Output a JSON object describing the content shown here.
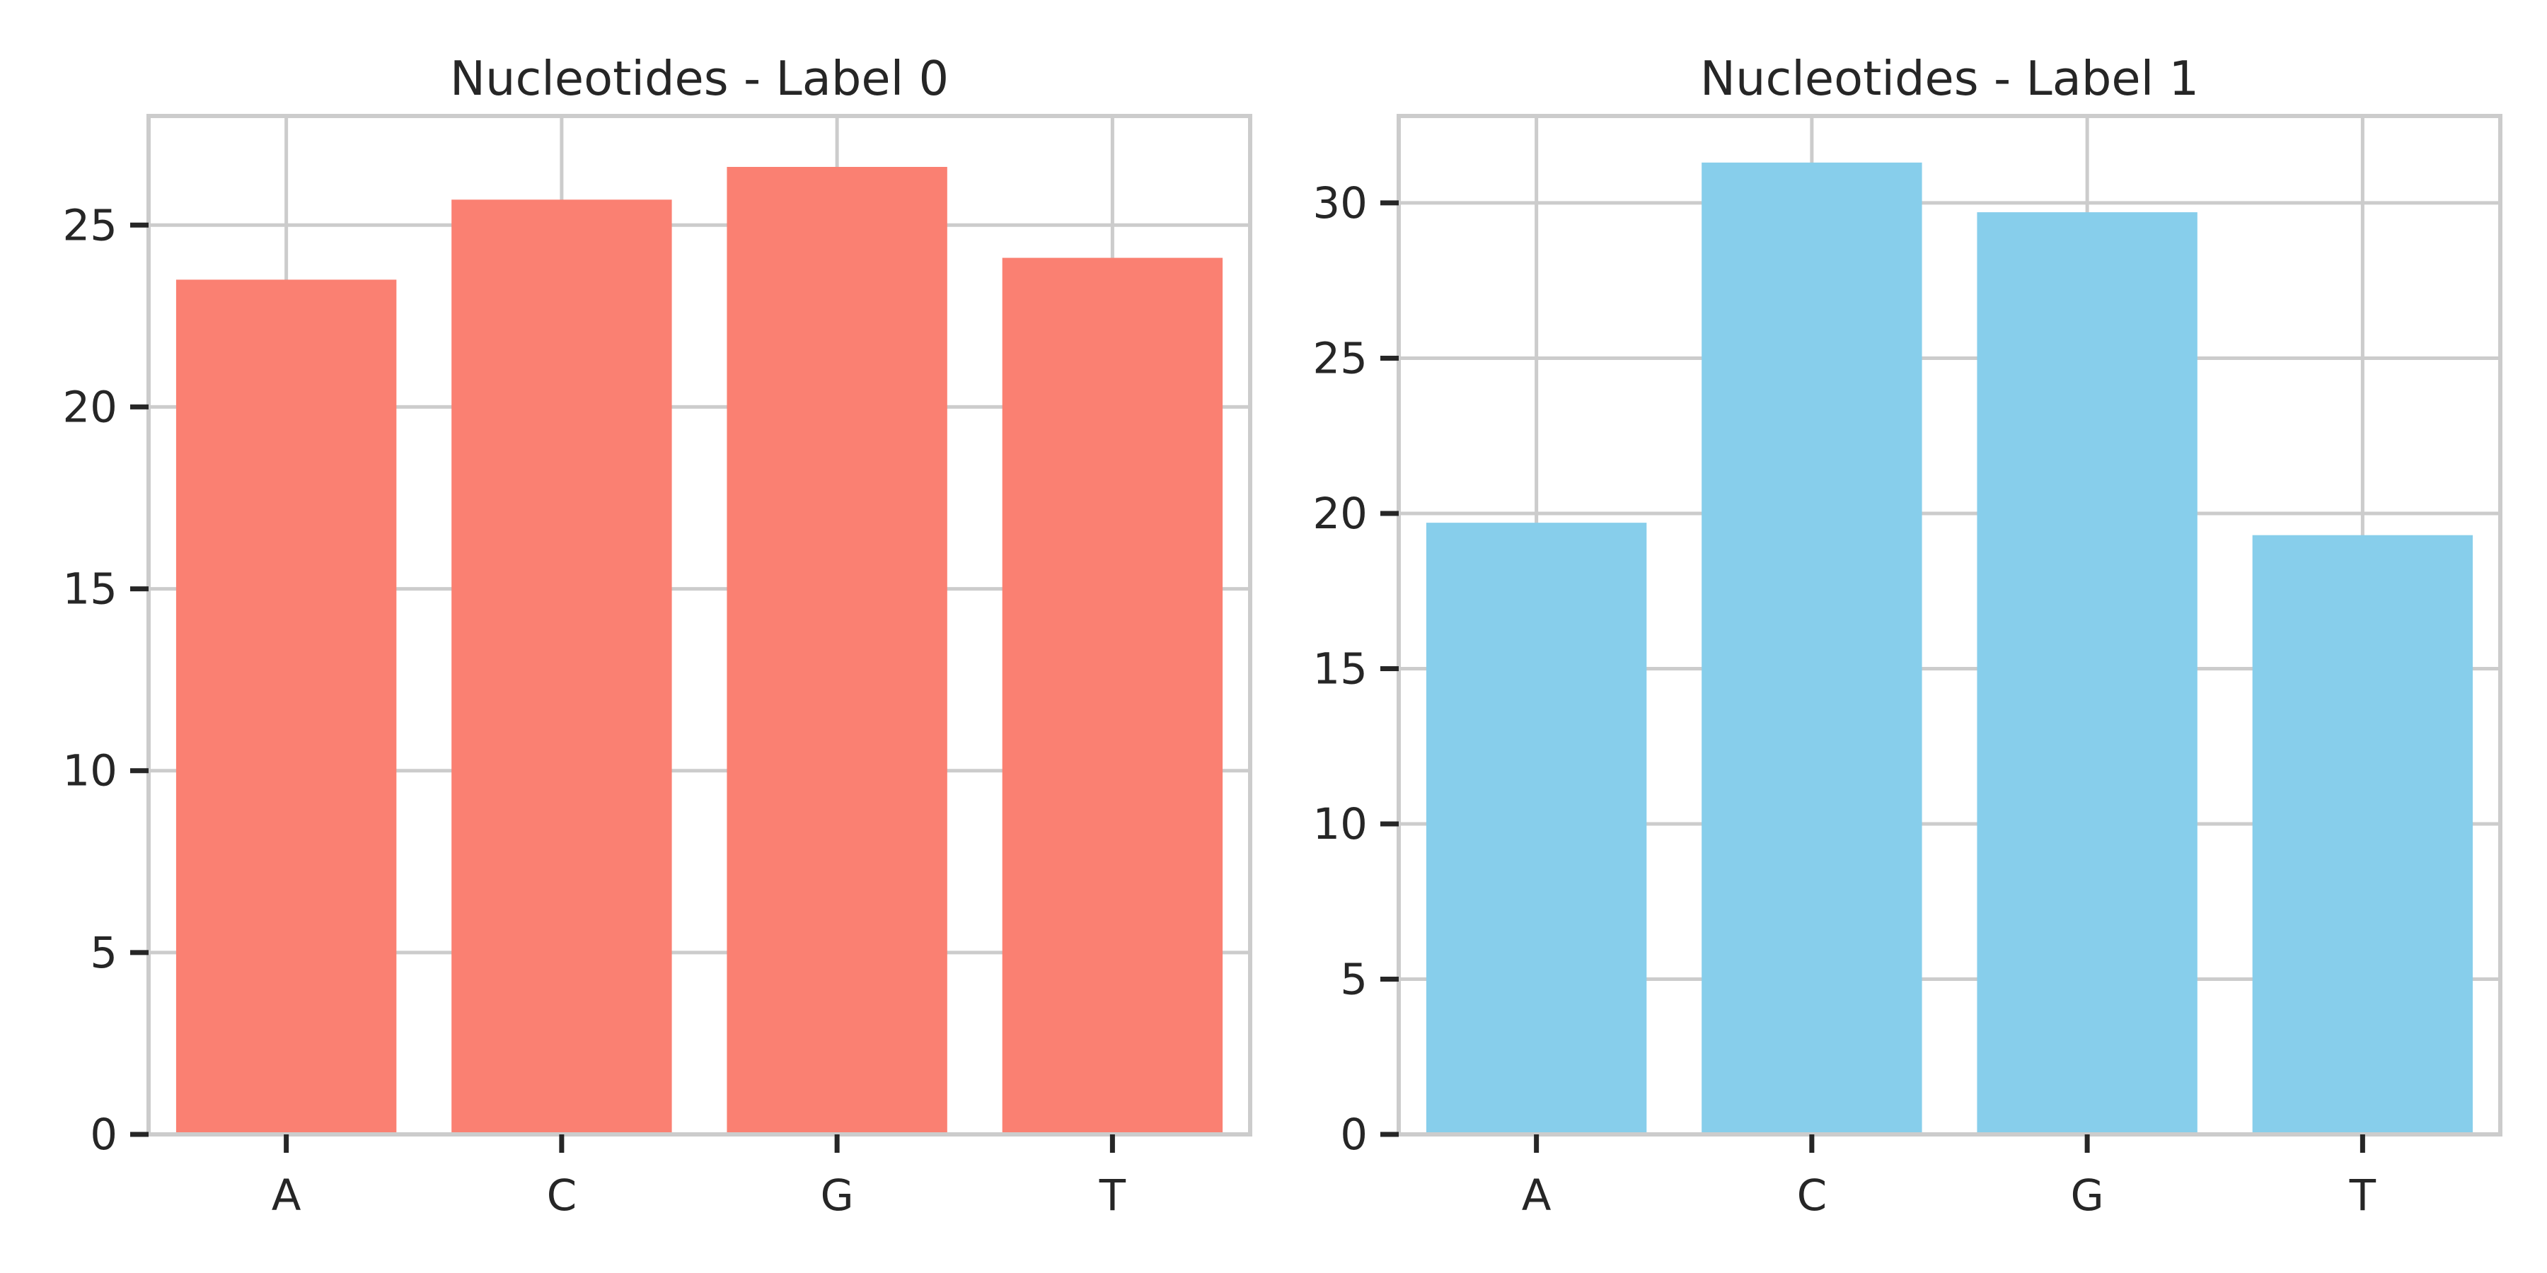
{
  "chart_data": [
    {
      "type": "bar",
      "title": "Nucleotides - Label 0",
      "xlabel": "",
      "ylabel": "",
      "categories": [
        "A",
        "C",
        "G",
        "T"
      ],
      "values": [
        23.5,
        25.7,
        26.6,
        24.1
      ],
      "ylim": [
        0,
        28
      ],
      "yticks": [
        0,
        5,
        10,
        15,
        20,
        25
      ],
      "bar_color": "#fa8072",
      "grid": true
    },
    {
      "type": "bar",
      "title": "Nucleotides - Label 1",
      "xlabel": "",
      "ylabel": "",
      "categories": [
        "A",
        "C",
        "G",
        "T"
      ],
      "values": [
        19.7,
        31.3,
        29.7,
        19.3
      ],
      "ylim": [
        0,
        32.8
      ],
      "yticks": [
        0,
        5,
        10,
        15,
        20,
        25,
        30
      ],
      "bar_color": "#87ceeb",
      "grid": true
    }
  ]
}
